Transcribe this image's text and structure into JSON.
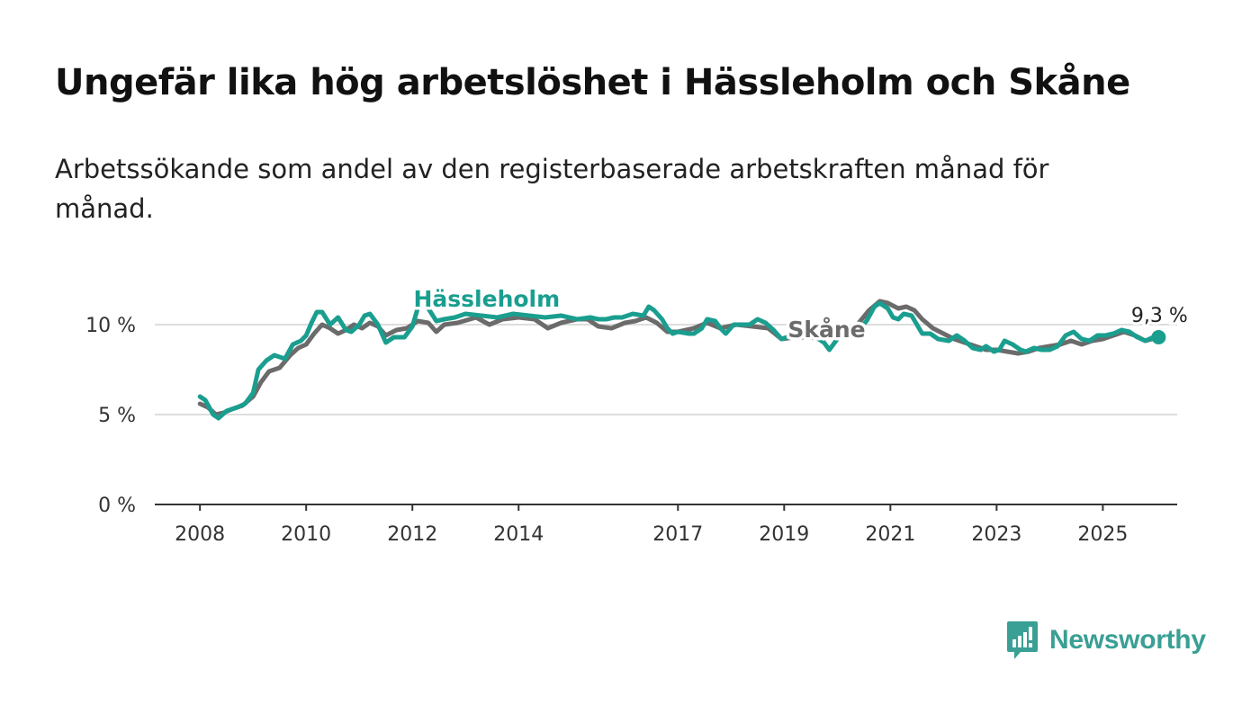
{
  "title": "Ungefär lika hög arbetslöshet i Hässleholm och Skåne",
  "subtitle": "Arbetssökande som andel av den registerbaserade arbetskraften månad för månad.",
  "logo": {
    "text": "Newsworthy",
    "icon": "newsworthy-bar-chart-icon",
    "color": "#3a9f94"
  },
  "colors": {
    "hassleholm": "#1a9e8f",
    "skane": "#6b6b6b",
    "grid": "#dddddd",
    "axis": "#333333"
  },
  "chart_data": {
    "type": "line",
    "x_unit": "year (decimal)",
    "y_unit": "percent",
    "xlim": [
      2007.15,
      2026.4
    ],
    "ylim": [
      0,
      12
    ],
    "x_ticks": [
      2008,
      2010,
      2012,
      2014,
      2017,
      2019,
      2021,
      2023,
      2025
    ],
    "y_ticks": [
      0,
      5,
      10
    ],
    "y_tick_labels": [
      "0 %",
      "5 %",
      "10 %"
    ],
    "grid": true,
    "legend": "inline labels",
    "end_label": "9,3 %",
    "series": [
      {
        "name": "Hässleholm",
        "key": "hassleholm",
        "label_x": 2013.4,
        "label_y": 11.0,
        "points": [
          [
            2008.0,
            6.0
          ],
          [
            2008.1,
            5.8
          ],
          [
            2008.25,
            5.0
          ],
          [
            2008.35,
            4.8
          ],
          [
            2008.5,
            5.2
          ],
          [
            2008.7,
            5.4
          ],
          [
            2008.85,
            5.6
          ],
          [
            2009.0,
            6.2
          ],
          [
            2009.1,
            7.5
          ],
          [
            2009.25,
            8.0
          ],
          [
            2009.4,
            8.3
          ],
          [
            2009.6,
            8.1
          ],
          [
            2009.75,
            8.9
          ],
          [
            2009.9,
            9.1
          ],
          [
            2010.0,
            9.4
          ],
          [
            2010.1,
            10.1
          ],
          [
            2010.2,
            10.7
          ],
          [
            2010.3,
            10.7
          ],
          [
            2010.45,
            10.0
          ],
          [
            2010.6,
            10.4
          ],
          [
            2010.75,
            9.7
          ],
          [
            2010.85,
            9.6
          ],
          [
            2011.0,
            10.0
          ],
          [
            2011.1,
            10.5
          ],
          [
            2011.2,
            10.6
          ],
          [
            2011.35,
            10.0
          ],
          [
            2011.5,
            9.0
          ],
          [
            2011.65,
            9.3
          ],
          [
            2011.85,
            9.3
          ],
          [
            2012.0,
            9.9
          ],
          [
            2012.1,
            10.9
          ],
          [
            2012.2,
            11.1
          ],
          [
            2012.3,
            10.9
          ],
          [
            2012.45,
            10.2
          ],
          [
            2012.6,
            10.3
          ],
          [
            2012.8,
            10.4
          ],
          [
            2013.0,
            10.6
          ],
          [
            2013.3,
            10.5
          ],
          [
            2013.6,
            10.4
          ],
          [
            2013.9,
            10.6
          ],
          [
            2014.2,
            10.5
          ],
          [
            2014.5,
            10.4
          ],
          [
            2014.8,
            10.5
          ],
          [
            2015.1,
            10.3
          ],
          [
            2015.35,
            10.4
          ],
          [
            2015.5,
            10.3
          ],
          [
            2015.65,
            10.3
          ],
          [
            2015.8,
            10.4
          ],
          [
            2015.95,
            10.4
          ],
          [
            2016.15,
            10.6
          ],
          [
            2016.35,
            10.5
          ],
          [
            2016.45,
            11.0
          ],
          [
            2016.55,
            10.8
          ],
          [
            2016.7,
            10.3
          ],
          [
            2016.8,
            9.8
          ],
          [
            2016.9,
            9.5
          ],
          [
            2017.0,
            9.6
          ],
          [
            2017.2,
            9.5
          ],
          [
            2017.3,
            9.5
          ],
          [
            2017.45,
            9.8
          ],
          [
            2017.55,
            10.3
          ],
          [
            2017.7,
            10.2
          ],
          [
            2017.8,
            9.8
          ],
          [
            2017.9,
            9.5
          ],
          [
            2018.05,
            10.0
          ],
          [
            2018.2,
            10.0
          ],
          [
            2018.35,
            10.0
          ],
          [
            2018.5,
            10.3
          ],
          [
            2018.65,
            10.1
          ],
          [
            2018.8,
            9.7
          ],
          [
            2018.95,
            9.2
          ],
          [
            2019.05,
            9.3
          ],
          [
            2019.2,
            9.5
          ],
          [
            2019.4,
            9.4
          ],
          [
            2019.6,
            9.3
          ],
          [
            2019.75,
            9.0
          ],
          [
            2019.85,
            8.6
          ],
          [
            2020.0,
            9.2
          ],
          [
            2020.2,
            9.9
          ],
          [
            2020.4,
            9.7
          ],
          [
            2020.55,
            10.2
          ],
          [
            2020.7,
            11.0
          ],
          [
            2020.8,
            11.2
          ],
          [
            2020.95,
            10.9
          ],
          [
            2021.05,
            10.4
          ],
          [
            2021.15,
            10.3
          ],
          [
            2021.25,
            10.6
          ],
          [
            2021.4,
            10.5
          ],
          [
            2021.5,
            10.0
          ],
          [
            2021.6,
            9.5
          ],
          [
            2021.75,
            9.5
          ],
          [
            2021.9,
            9.2
          ],
          [
            2022.1,
            9.1
          ],
          [
            2022.25,
            9.4
          ],
          [
            2022.4,
            9.1
          ],
          [
            2022.55,
            8.7
          ],
          [
            2022.7,
            8.6
          ],
          [
            2022.8,
            8.8
          ],
          [
            2022.95,
            8.5
          ],
          [
            2023.05,
            8.6
          ],
          [
            2023.15,
            9.1
          ],
          [
            2023.3,
            8.9
          ],
          [
            2023.45,
            8.6
          ],
          [
            2023.55,
            8.5
          ],
          [
            2023.7,
            8.7
          ],
          [
            2023.85,
            8.6
          ],
          [
            2024.0,
            8.6
          ],
          [
            2024.15,
            8.8
          ],
          [
            2024.3,
            9.4
          ],
          [
            2024.45,
            9.6
          ],
          [
            2024.6,
            9.2
          ],
          [
            2024.75,
            9.1
          ],
          [
            2024.9,
            9.4
          ],
          [
            2025.05,
            9.4
          ],
          [
            2025.2,
            9.5
          ],
          [
            2025.35,
            9.7
          ],
          [
            2025.5,
            9.6
          ],
          [
            2025.65,
            9.3
          ],
          [
            2025.8,
            9.1
          ],
          [
            2025.95,
            9.3
          ],
          [
            2026.05,
            9.3
          ]
        ]
      },
      {
        "name": "Skåne",
        "key": "skane",
        "label_x": 2019.8,
        "label_y": 9.3,
        "points": [
          [
            2008.0,
            5.6
          ],
          [
            2008.15,
            5.4
          ],
          [
            2008.3,
            5.0
          ],
          [
            2008.45,
            5.1
          ],
          [
            2008.6,
            5.3
          ],
          [
            2008.8,
            5.5
          ],
          [
            2009.0,
            6.0
          ],
          [
            2009.15,
            6.8
          ],
          [
            2009.3,
            7.4
          ],
          [
            2009.5,
            7.6
          ],
          [
            2009.7,
            8.3
          ],
          [
            2009.85,
            8.7
          ],
          [
            2010.0,
            8.9
          ],
          [
            2010.15,
            9.5
          ],
          [
            2010.3,
            10.0
          ],
          [
            2010.45,
            9.8
          ],
          [
            2010.6,
            9.5
          ],
          [
            2010.75,
            9.7
          ],
          [
            2010.9,
            10.0
          ],
          [
            2011.05,
            9.8
          ],
          [
            2011.2,
            10.1
          ],
          [
            2011.35,
            9.9
          ],
          [
            2011.5,
            9.4
          ],
          [
            2011.7,
            9.7
          ],
          [
            2011.9,
            9.8
          ],
          [
            2012.1,
            10.2
          ],
          [
            2012.3,
            10.1
          ],
          [
            2012.45,
            9.6
          ],
          [
            2012.6,
            10.0
          ],
          [
            2012.85,
            10.1
          ],
          [
            2013.2,
            10.4
          ],
          [
            2013.45,
            10.0
          ],
          [
            2013.7,
            10.3
          ],
          [
            2014.0,
            10.4
          ],
          [
            2014.3,
            10.3
          ],
          [
            2014.55,
            9.8
          ],
          [
            2014.8,
            10.1
          ],
          [
            2015.1,
            10.3
          ],
          [
            2015.3,
            10.3
          ],
          [
            2015.5,
            9.9
          ],
          [
            2015.75,
            9.8
          ],
          [
            2016.0,
            10.1
          ],
          [
            2016.2,
            10.2
          ],
          [
            2016.4,
            10.4
          ],
          [
            2016.6,
            10.1
          ],
          [
            2016.8,
            9.6
          ],
          [
            2017.0,
            9.6
          ],
          [
            2017.3,
            9.8
          ],
          [
            2017.55,
            10.1
          ],
          [
            2017.8,
            9.8
          ],
          [
            2018.1,
            10.0
          ],
          [
            2018.4,
            9.9
          ],
          [
            2018.7,
            9.8
          ],
          [
            2018.95,
            9.2
          ],
          [
            2019.2,
            9.3
          ],
          [
            2019.45,
            9.3
          ],
          [
            2019.75,
            9.2
          ],
          [
            2020.05,
            9.6
          ],
          [
            2020.35,
            9.9
          ],
          [
            2020.6,
            10.8
          ],
          [
            2020.8,
            11.3
          ],
          [
            2020.95,
            11.2
          ],
          [
            2021.15,
            10.9
          ],
          [
            2021.3,
            11.0
          ],
          [
            2021.45,
            10.8
          ],
          [
            2021.6,
            10.3
          ],
          [
            2021.8,
            9.8
          ],
          [
            2022.0,
            9.5
          ],
          [
            2022.2,
            9.2
          ],
          [
            2022.4,
            9.0
          ],
          [
            2022.6,
            8.8
          ],
          [
            2022.8,
            8.6
          ],
          [
            2023.0,
            8.6
          ],
          [
            2023.2,
            8.5
          ],
          [
            2023.4,
            8.4
          ],
          [
            2023.6,
            8.5
          ],
          [
            2023.8,
            8.7
          ],
          [
            2024.0,
            8.8
          ],
          [
            2024.2,
            8.9
          ],
          [
            2024.4,
            9.1
          ],
          [
            2024.6,
            8.9
          ],
          [
            2024.8,
            9.1
          ],
          [
            2025.0,
            9.2
          ],
          [
            2025.2,
            9.4
          ],
          [
            2025.4,
            9.6
          ],
          [
            2025.6,
            9.4
          ],
          [
            2025.8,
            9.1
          ],
          [
            2026.05,
            9.3
          ]
        ]
      }
    ]
  }
}
